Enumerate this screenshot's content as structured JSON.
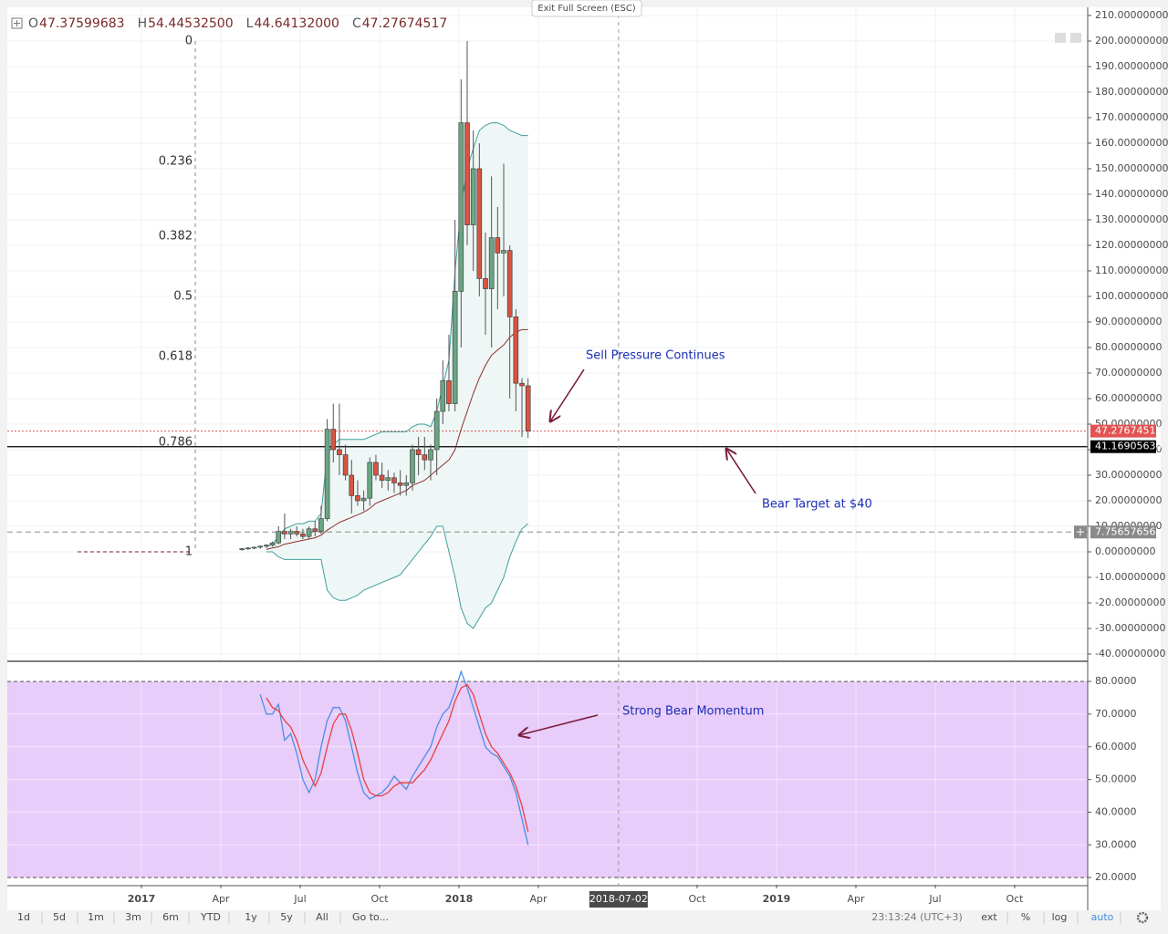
{
  "header": {
    "ohlc": [
      {
        "label": "O",
        "value": "47.37599683"
      },
      {
        "label": "H",
        "value": "54.44532500"
      },
      {
        "label": "L",
        "value": "44.64132000"
      },
      {
        "label": "C",
        "value": "47.27674517"
      }
    ]
  },
  "exit_fullscreen": "Exit Full Screen (ESC)",
  "annotations": [
    "Sell Pressure Continues",
    "Bear Target at $40",
    "Strong Bear Momentum"
  ],
  "chart_data": [
    {
      "type": "candlestick",
      "x": [
        3.8,
        4.03,
        4.26,
        4.49,
        4.72,
        4.95,
        5.18,
        5.41,
        5.64,
        5.87,
        6.1,
        6.33,
        6.56,
        6.79,
        7.02,
        7.25,
        7.48,
        7.71,
        7.94,
        8.17,
        8.4,
        8.63,
        8.86,
        9.09,
        9.32,
        9.55,
        9.78,
        10.01,
        10.24,
        10.47,
        10.7,
        10.93,
        11.16,
        11.39,
        11.62,
        11.85,
        12.08,
        12.31,
        12.54,
        12.77,
        13.0,
        13.23,
        13.46,
        13.69,
        13.92,
        14.15,
        14.38,
        14.61
      ],
      "open": [
        1,
        1.2,
        1.5,
        1.8,
        2.2,
        2.6,
        3.5,
        8,
        7,
        8,
        7,
        6,
        9,
        8,
        13,
        48,
        40,
        38,
        30,
        22,
        20,
        21,
        35,
        30,
        28,
        29,
        27,
        26,
        27,
        40,
        38,
        36,
        40,
        55,
        67,
        58,
        102,
        168,
        128,
        150,
        107,
        103,
        123,
        117,
        118,
        92,
        66,
        65
      ],
      "high": [
        1.5,
        1.8,
        2,
        2.5,
        3,
        4,
        10,
        15,
        9,
        10,
        9,
        10,
        12,
        18,
        52,
        58,
        58,
        42,
        36,
        28,
        24,
        37,
        38,
        35,
        32,
        31,
        32,
        30,
        42,
        45,
        45,
        42,
        60,
        75,
        85,
        130,
        185,
        200,
        165,
        160,
        125,
        147,
        135,
        152,
        120,
        95,
        68,
        68
      ],
      "low": [
        0.5,
        0.8,
        1,
        1.2,
        1.5,
        2,
        3,
        5,
        5,
        6,
        5,
        5,
        6,
        7,
        12,
        35,
        30,
        28,
        15,
        18,
        16,
        18,
        28,
        25,
        24,
        23,
        22,
        22,
        24,
        30,
        32,
        28,
        30,
        50,
        55,
        55,
        80,
        120,
        110,
        100,
        85,
        80,
        95,
        100,
        60,
        55,
        45,
        44.64
      ],
      "close": [
        1.2,
        1.5,
        1.8,
        2.2,
        2.6,
        3.5,
        8,
        7,
        8,
        7,
        6,
        9,
        8,
        13,
        48,
        40,
        38,
        30,
        22,
        20,
        21,
        35,
        30,
        28,
        29,
        27,
        26,
        27,
        40,
        38,
        36,
        40,
        55,
        67,
        58,
        102,
        168,
        128,
        150,
        107,
        103,
        123,
        117,
        118,
        92,
        66,
        65,
        47.28
      ],
      "up_color": "#6ba583",
      "down_color": "#d75442",
      "overlays": [
        {
          "color": "#3f9e9a",
          "values": [
            null,
            null,
            null,
            null,
            2,
            3,
            6,
            9,
            10,
            11,
            11,
            12,
            12,
            15,
            38,
            42,
            44,
            44,
            44,
            44,
            44,
            45,
            46,
            47,
            47,
            47,
            47,
            47,
            49,
            50,
            50,
            49,
            55,
            65,
            75,
            110,
            135,
            150,
            158,
            165,
            167,
            168,
            168,
            167,
            165,
            164,
            163,
            163
          ]
        },
        {
          "color": "#8e2d2d",
          "values": [
            null,
            null,
            null,
            null,
            1,
            1.5,
            2,
            3,
            3.5,
            4,
            4.5,
            5,
            5.5,
            6.5,
            8.5,
            10,
            11.5,
            12.5,
            13.5,
            14.5,
            15.5,
            17,
            19,
            20,
            21,
            22,
            23,
            24,
            26,
            27,
            28,
            30,
            32,
            34,
            36,
            40,
            48,
            55,
            62,
            68,
            73,
            77,
            79,
            81,
            84,
            86,
            87,
            87
          ]
        },
        {
          "color": "#3f9e9a",
          "values": [
            null,
            null,
            null,
            null,
            0,
            0,
            -2,
            -3,
            -3,
            -3,
            -3,
            -3,
            -3,
            -3,
            -15,
            -18,
            -19,
            -19,
            -18,
            -17,
            -15,
            -14,
            -13,
            -12,
            -11,
            -10,
            -9,
            -6,
            -3,
            0,
            3,
            6,
            10,
            10,
            0,
            -10,
            -22,
            -28,
            -30,
            -26,
            -22,
            -20,
            -15,
            -10,
            -2,
            4,
            9,
            11
          ]
        }
      ],
      "band_fill": "#eef7f5",
      "xlim": [
        -5.07,
        35.76
      ],
      "xticks": [
        {
          "value": 0,
          "label": "2017"
        },
        {
          "value": 3,
          "label": "Apr"
        },
        {
          "value": 6,
          "label": "Jul"
        },
        {
          "value": 9,
          "label": "Oct"
        },
        {
          "value": 12,
          "label": "2018"
        },
        {
          "value": 15,
          "label": "Apr"
        },
        {
          "value": 21,
          "label": "Oct"
        },
        {
          "value": 24,
          "label": "2019"
        },
        {
          "value": 27,
          "label": "Apr"
        },
        {
          "value": 30,
          "label": "Jul"
        },
        {
          "value": 33,
          "label": "Oct"
        }
      ],
      "crosshair_x": {
        "value": 18.03,
        "label": "2018-07-02"
      },
      "ylim": [
        -42.5,
        213.2
      ],
      "yticks": [
        {
          "value": -40,
          "label": "-40.00000000"
        },
        {
          "value": -30,
          "label": "-30.00000000"
        },
        {
          "value": -20,
          "label": "-20.00000000"
        },
        {
          "value": -10,
          "label": "-10.00000000"
        },
        {
          "value": 0,
          "label": "0.00000000"
        },
        {
          "value": 10,
          "label": "10.00000000"
        },
        {
          "value": 20,
          "label": "20.00000000"
        },
        {
          "value": 30,
          "label": "30.00000000"
        },
        {
          "value": 40,
          "label": "40.00000000"
        },
        {
          "value": 50,
          "label": "50.00000000"
        },
        {
          "value": 60,
          "label": "60.00000000"
        },
        {
          "value": 70,
          "label": "70.00000000"
        },
        {
          "value": 80,
          "label": "80.00000000"
        },
        {
          "value": 90,
          "label": "90.00000000"
        },
        {
          "value": 100,
          "label": "100.00000000"
        },
        {
          "value": 110,
          "label": "110.00000000"
        },
        {
          "value": 120,
          "label": "120.00000000"
        },
        {
          "value": 130,
          "label": "130.00000000"
        },
        {
          "value": 140,
          "label": "140.00000000"
        },
        {
          "value": 150,
          "label": "150.00000000"
        },
        {
          "value": 160,
          "label": "160.00000000"
        },
        {
          "value": 170,
          "label": "170.00000000"
        },
        {
          "value": 180,
          "label": "180.00000000"
        },
        {
          "value": 190,
          "label": "190.00000000"
        },
        {
          "value": 200,
          "label": "200.00000000"
        },
        {
          "value": 210,
          "label": "210.00000000"
        }
      ],
      "grid": true,
      "price_lines": [
        {
          "value": 47.27674517,
          "color": "#e35353",
          "style": "dotted"
        },
        {
          "value": 41.16905634,
          "color": "#000000",
          "style": "solid"
        },
        {
          "value": 7.75657656,
          "color": "#8a8a8a",
          "style": "dashed"
        }
      ],
      "fib_levels": [
        {
          "level": 0,
          "price": 200
        },
        {
          "level": 0.236,
          "price": 152.8
        },
        {
          "level": 0.382,
          "price": 123.6
        },
        {
          "level": 0.5,
          "price": 100
        },
        {
          "level": 0.618,
          "price": 76.4
        },
        {
          "level": 0.786,
          "price": 42.8
        },
        {
          "level": 1,
          "price": 0
        }
      ]
    },
    {
      "type": "line",
      "x": [
        3.8,
        4.03,
        4.26,
        4.49,
        4.72,
        4.95,
        5.18,
        5.41,
        5.64,
        5.87,
        6.1,
        6.33,
        6.56,
        6.79,
        7.02,
        7.25,
        7.48,
        7.71,
        7.94,
        8.17,
        8.4,
        8.63,
        8.86,
        9.09,
        9.32,
        9.55,
        9.78,
        10.01,
        10.24,
        10.47,
        10.7,
        10.93,
        11.16,
        11.39,
        11.62,
        11.85,
        12.08,
        12.31,
        12.54,
        12.77,
        13.0,
        13.23,
        13.46,
        13.69,
        13.92,
        14.15,
        14.38,
        14.61
      ],
      "series": [
        {
          "color": "#4a8fe0",
          "values": [
            null,
            null,
            null,
            76,
            70,
            70,
            73,
            62,
            64,
            58,
            50,
            46,
            50,
            60,
            68,
            72,
            72,
            68,
            60,
            52,
            46,
            44,
            45,
            46,
            48,
            51,
            49,
            47,
            51,
            54,
            57,
            60,
            66,
            70,
            72,
            77,
            83,
            78,
            72,
            66,
            60,
            58,
            57,
            54,
            51,
            46,
            38,
            30
          ]
        },
        {
          "color": "#e8413e",
          "values": [
            null,
            null,
            null,
            null,
            75,
            72,
            71,
            68,
            66,
            62,
            56,
            52,
            48,
            52,
            60,
            67,
            70,
            70,
            65,
            58,
            50,
            46,
            45,
            45,
            46,
            48,
            49,
            49,
            49,
            51,
            53,
            56,
            60,
            64,
            68,
            74,
            78,
            79,
            76,
            70,
            64,
            60,
            58,
            55,
            52,
            48,
            42,
            34
          ]
        }
      ],
      "band_fill": "#e8ccfa",
      "ylim": [
        17.8,
        85.6
      ],
      "yticks": [
        {
          "value": 80,
          "label": "80.0000"
        },
        {
          "value": 70,
          "label": "70.0000"
        },
        {
          "value": 60,
          "label": "60.0000"
        },
        {
          "value": 50,
          "label": "50.0000"
        },
        {
          "value": 40,
          "label": "40.0000"
        },
        {
          "value": 30,
          "label": "30.0000"
        },
        {
          "value": 20,
          "label": "20.0000"
        }
      ],
      "grid": true
    }
  ],
  "toolbar": {
    "ranges": [
      "1d",
      "5d",
      "1m",
      "3m",
      "6m",
      "YTD",
      "1y",
      "5y",
      "All"
    ],
    "goto": "Go to...",
    "clock": "23:13:24 (UTC+3)",
    "options": [
      "ext",
      "%",
      "log",
      "auto"
    ]
  }
}
